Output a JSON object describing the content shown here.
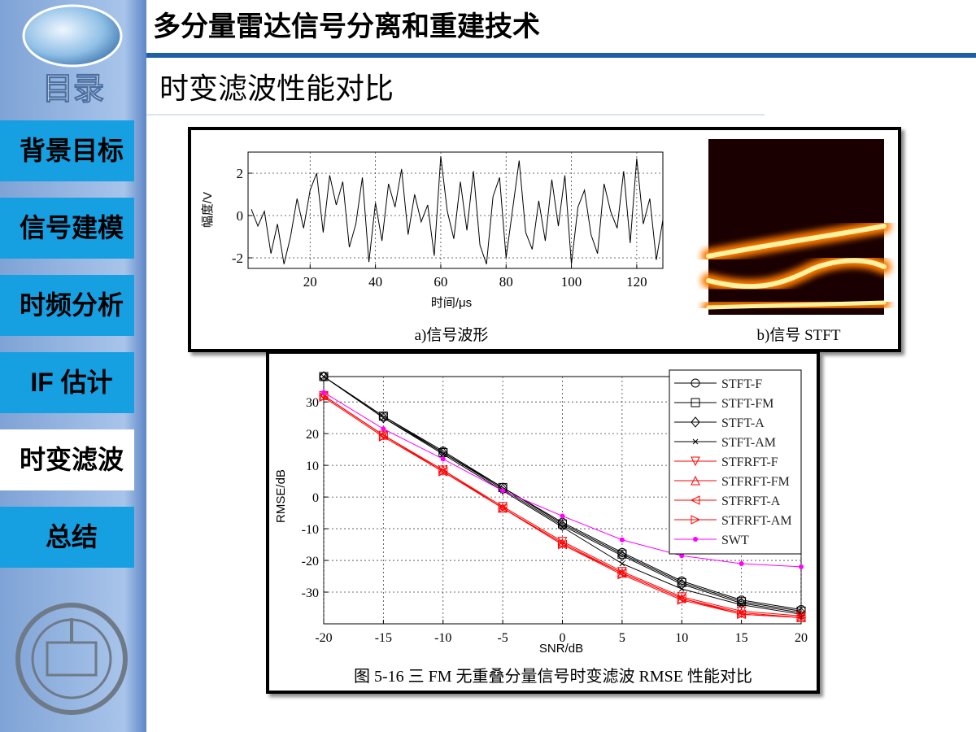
{
  "header": {
    "title": "多分量雷达信号分离和重建技术",
    "subtitle": "时变滤波性能对比"
  },
  "nav": {
    "heading": "目录",
    "items": [
      "背景目标",
      "信号建模",
      "时频分析",
      "IF 估计",
      "时变滤波",
      "总结"
    ],
    "active": 4
  },
  "stft": {
    "caption": "b)信号 STFT"
  },
  "chart_data": [
    {
      "type": "line",
      "xlabel": "时间/μs",
      "ylabel": "幅度/V",
      "caption": "a)信号波形",
      "color": "#000000",
      "x": [
        2,
        4,
        6,
        8,
        10,
        12,
        14,
        16,
        18,
        20,
        22,
        24,
        26,
        28,
        30,
        32,
        34,
        36,
        38,
        40,
        42,
        44,
        46,
        48,
        50,
        52,
        54,
        56,
        58,
        60,
        62,
        64,
        66,
        68,
        70,
        72,
        74,
        76,
        78,
        80,
        82,
        84,
        86,
        88,
        90,
        92,
        94,
        96,
        98,
        100,
        102,
        104,
        106,
        108,
        110,
        112,
        114,
        116,
        118,
        120,
        122,
        124,
        126,
        128
      ],
      "values": [
        0.3,
        -0.5,
        0.2,
        -1.8,
        -0.4,
        -2.3,
        -1.0,
        0.8,
        -0.6,
        1.2,
        2.0,
        -0.8,
        1.9,
        0.5,
        1.6,
        -1.5,
        -0.4,
        1.8,
        -2.2,
        0.6,
        -1.2,
        1.5,
        0.4,
        2.2,
        -0.9,
        1.0,
        -0.3,
        0.5,
        -1.9,
        2.8,
        0.2,
        -1.1,
        1.6,
        -0.7,
        2.1,
        -1.4,
        -2.3,
        0.9,
        1.8,
        -2.0,
        0.3,
        2.6,
        -0.8,
        -1.6,
        0.7,
        -1.2,
        1.7,
        -0.5,
        1.9,
        -2.3,
        0.4,
        1.2,
        -0.9,
        -1.8,
        1.5,
        0.2,
        -0.6,
        2.1,
        -1.3,
        2.7,
        -0.4,
        0.8,
        -2.1,
        -0.2
      ],
      "xlim": [
        1,
        128
      ],
      "xticks": [
        20,
        40,
        60,
        80,
        100,
        120
      ],
      "ylim": [
        -2.5,
        3
      ],
      "yticks": [
        -2,
        0,
        2
      ],
      "grid": true
    },
    {
      "type": "line",
      "xlabel": "SNR/dB",
      "ylabel": "RMSE/dB",
      "caption": "图 5-16 三 FM 无重叠分量信号时变滤波 RMSE 性能对比",
      "x": [
        -20,
        -15,
        -10,
        -5,
        0,
        5,
        10,
        15,
        20
      ],
      "xlim": [
        -20,
        20
      ],
      "xticks": [
        -20,
        -15,
        -10,
        -5,
        0,
        5,
        10,
        15,
        20
      ],
      "ylim": [
        -40,
        38
      ],
      "yticks": [
        -30,
        -20,
        -10,
        0,
        10,
        20,
        30
      ],
      "grid": true,
      "legend": "upper right",
      "series": [
        {
          "name": "STFT-F",
          "color": "#000000",
          "marker": "circle",
          "values": [
            38,
            25.5,
            14.5,
            3,
            -8,
            -17.5,
            -26.5,
            -32.5,
            -35.5
          ]
        },
        {
          "name": "STFT-FM",
          "color": "#000000",
          "marker": "square",
          "values": [
            38,
            25.5,
            14,
            3,
            -8.5,
            -18,
            -27,
            -33,
            -36
          ]
        },
        {
          "name": "STFT-A",
          "color": "#000000",
          "marker": "diamond",
          "values": [
            38,
            25,
            14,
            2.5,
            -9,
            -18.5,
            -27.5,
            -33.5,
            -36.5
          ]
        },
        {
          "name": "STFT-AM",
          "color": "#000000",
          "marker": "x",
          "values": [
            38,
            25,
            13.5,
            2,
            -9.5,
            -21,
            -29,
            -34,
            -37
          ]
        },
        {
          "name": "STFRFT-F",
          "color": "#ff0000",
          "marker": "triangle-down",
          "values": [
            32,
            19.5,
            8.5,
            -3,
            -14,
            -23.5,
            -31.5,
            -36,
            -37.5
          ]
        },
        {
          "name": "STFRFT-FM",
          "color": "#ff0000",
          "marker": "triangle-up",
          "values": [
            32,
            19.5,
            8.5,
            -3.5,
            -14.5,
            -24,
            -32,
            -36.5,
            -38
          ]
        },
        {
          "name": "STFRFT-A",
          "color": "#ff0000",
          "marker": "triangle-left",
          "values": [
            32,
            19.5,
            8,
            -3.5,
            -15,
            -24,
            -32,
            -37,
            -38
          ]
        },
        {
          "name": "STFRFT-AM",
          "color": "#ff0000",
          "marker": "triangle-right",
          "values": [
            31.5,
            19,
            8,
            -3.5,
            -15,
            -24.5,
            -32.5,
            -37,
            -38
          ]
        },
        {
          "name": "SWT",
          "color": "#ff00ff",
          "marker": "dot",
          "values": [
            33,
            21.5,
            12,
            2,
            -6,
            -13.5,
            -18.5,
            -21,
            -22
          ]
        }
      ]
    }
  ]
}
